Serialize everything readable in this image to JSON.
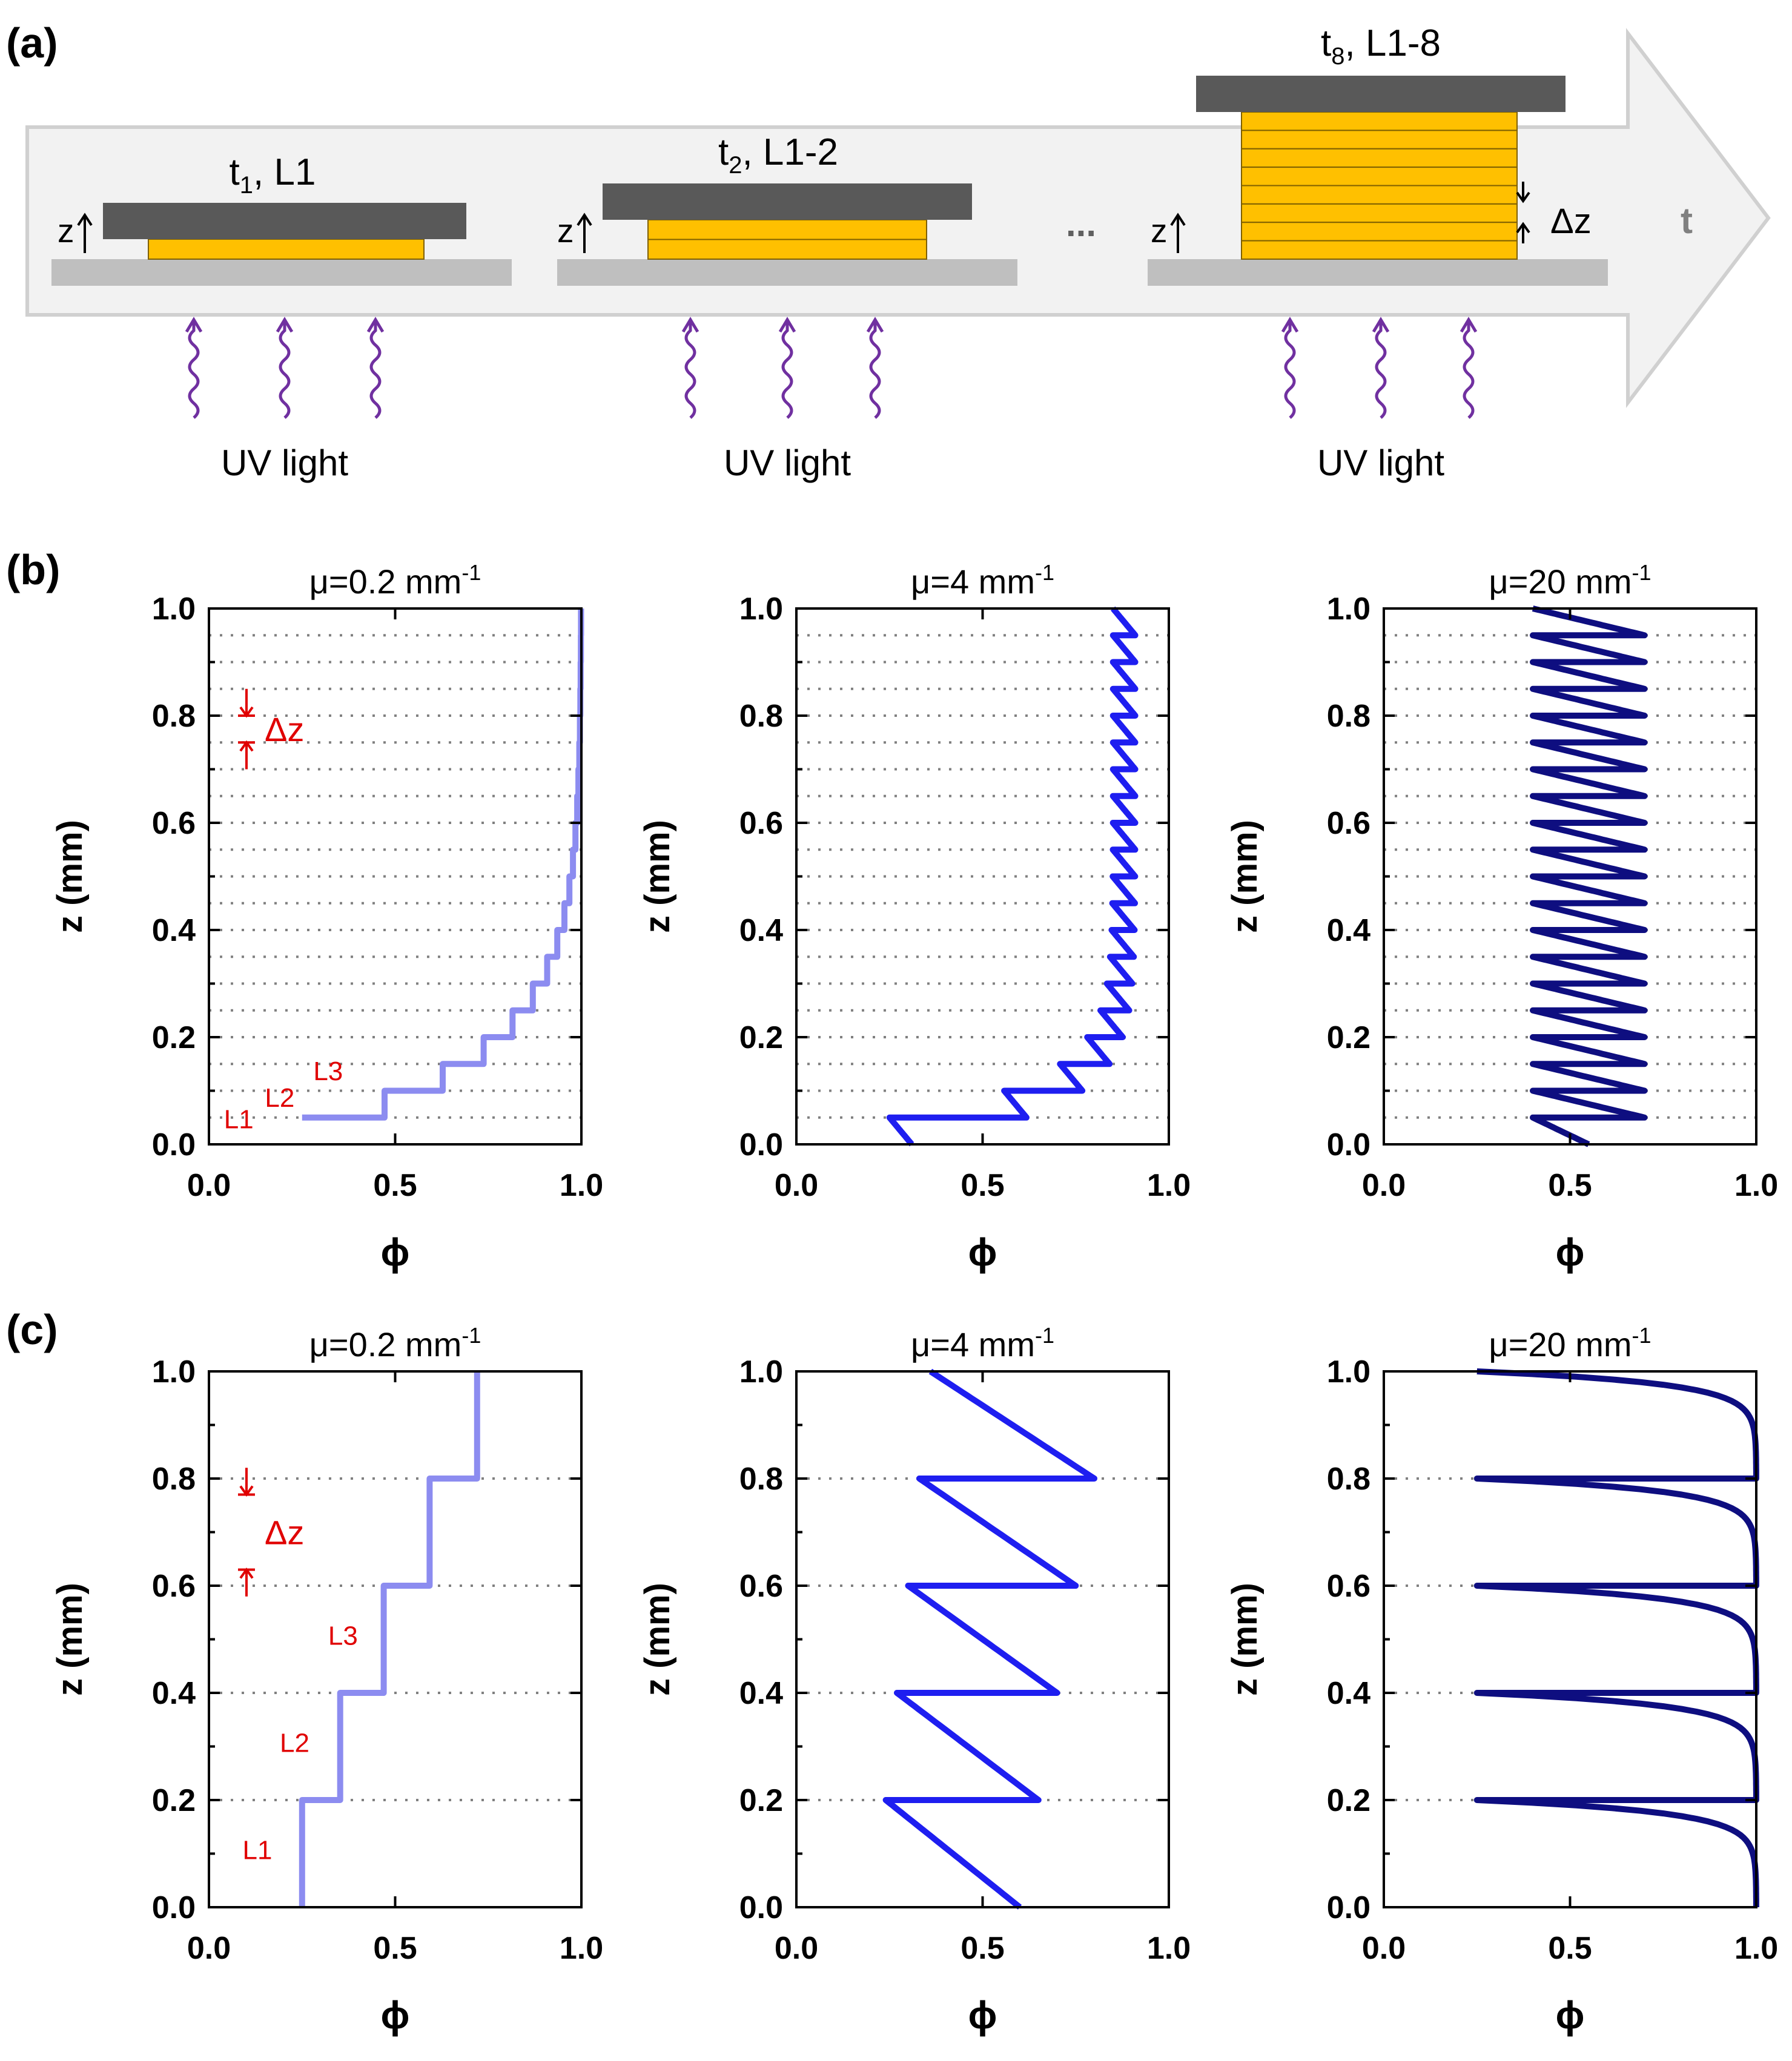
{
  "panel_labels": {
    "a": "(a)",
    "b": "(b)",
    "c": "(c)"
  },
  "process": {
    "axis_label": "t",
    "ellipsis": "...",
    "z_label": "z",
    "dz_label": "Δz",
    "light_label": "UV light",
    "stages": [
      {
        "time": "t",
        "time_sub": "1",
        "layers_text": ", L1",
        "n_layers": 1
      },
      {
        "time": "t",
        "time_sub": "2",
        "layers_text": ", L1-2",
        "n_layers": 2
      },
      {
        "time": "t",
        "time_sub": "8",
        "layers_text": ", L1-8",
        "n_layers": 8
      }
    ]
  },
  "colors": {
    "light_blue": "#8C8CF0",
    "blue": "#1E1EF0",
    "navy": "#0E0E80",
    "annotation_red": "#E00000",
    "resin_yellow": "#FFC000",
    "plate_dark": "#595959",
    "base_gray": "#BFBFBF",
    "uv_purple": "#7030A0",
    "arrow_fill": "#F2F2F2",
    "arrow_stroke": "#D0D0D0"
  },
  "chart_data": [
    {
      "type": "line",
      "panel": "b",
      "title": "μ=0.2 mm",
      "title_sup": "-1",
      "xlabel": "ϕ",
      "ylabel": "z (mm)",
      "xlim": [
        0,
        1
      ],
      "ylim": [
        0,
        1
      ],
      "xticks": [
        "0.0",
        "0.5",
        "1.0"
      ],
      "yticks": [
        "0.0",
        "0.2",
        "0.4",
        "0.6",
        "0.8",
        "1.0"
      ],
      "mu": 0.2,
      "layer_thickness": 0.05,
      "style": "step",
      "color_key": "light_blue",
      "annotations": {
        "dz": "Δz",
        "layers": [
          "L1",
          "L2",
          "L3"
        ]
      }
    },
    {
      "type": "line",
      "panel": "b",
      "title": "μ=4 mm",
      "title_sup": "-1",
      "xlabel": "ϕ",
      "ylabel": "z (mm)",
      "xlim": [
        0,
        1
      ],
      "ylim": [
        0,
        1
      ],
      "xticks": [
        "0.0",
        "0.5",
        "1.0"
      ],
      "yticks": [
        "0.0",
        "0.2",
        "0.4",
        "0.6",
        "0.8",
        "1.0"
      ],
      "mu": 4,
      "layer_thickness": 0.05,
      "style": "curve",
      "color_key": "blue"
    },
    {
      "type": "line",
      "panel": "b",
      "title": "μ=20 mm",
      "title_sup": "-1",
      "xlabel": "ϕ",
      "ylabel": "z (mm)",
      "xlim": [
        0,
        1
      ],
      "ylim": [
        0,
        1
      ],
      "xticks": [
        "0.0",
        "0.5",
        "1.0"
      ],
      "yticks": [
        "0.0",
        "0.2",
        "0.4",
        "0.6",
        "0.8",
        "1.0"
      ],
      "mu": 20,
      "layer_thickness": 0.05,
      "style": "curve",
      "color_key": "navy"
    },
    {
      "type": "line",
      "panel": "c",
      "title": "μ=0.2 mm",
      "title_sup": "-1",
      "xlabel": "ϕ",
      "ylabel": "z (mm)",
      "xlim": [
        0,
        1
      ],
      "ylim": [
        0,
        1
      ],
      "xticks": [
        "0.0",
        "0.5",
        "1.0"
      ],
      "yticks": [
        "0.0",
        "0.2",
        "0.4",
        "0.6",
        "0.8",
        "1.0"
      ],
      "mu": 0.2,
      "layer_thickness": 0.2,
      "style": "step",
      "color_key": "light_blue",
      "annotations": {
        "dz": "Δz",
        "layers": [
          "L1",
          "L2",
          "L3"
        ]
      }
    },
    {
      "type": "line",
      "panel": "c",
      "title": "μ=4 mm",
      "title_sup": "-1",
      "xlabel": "ϕ",
      "ylabel": "z (mm)",
      "xlim": [
        0,
        1
      ],
      "ylim": [
        0,
        1
      ],
      "xticks": [
        "0.0",
        "0.5",
        "1.0"
      ],
      "yticks": [
        "0.0",
        "0.2",
        "0.4",
        "0.6",
        "0.8",
        "1.0"
      ],
      "mu": 4,
      "layer_thickness": 0.2,
      "style": "curve",
      "color_key": "blue"
    },
    {
      "type": "line",
      "panel": "c",
      "title": "μ=20 mm",
      "title_sup": "-1",
      "xlabel": "ϕ",
      "ylabel": "z (mm)",
      "xlim": [
        0,
        1
      ],
      "ylim": [
        0,
        1
      ],
      "xticks": [
        "0.0",
        "0.5",
        "1.0"
      ],
      "yticks": [
        "0.0",
        "0.2",
        "0.4",
        "0.6",
        "0.8",
        "1.0"
      ],
      "mu": 20,
      "layer_thickness": 0.2,
      "style": "curve",
      "color_key": "navy"
    }
  ]
}
